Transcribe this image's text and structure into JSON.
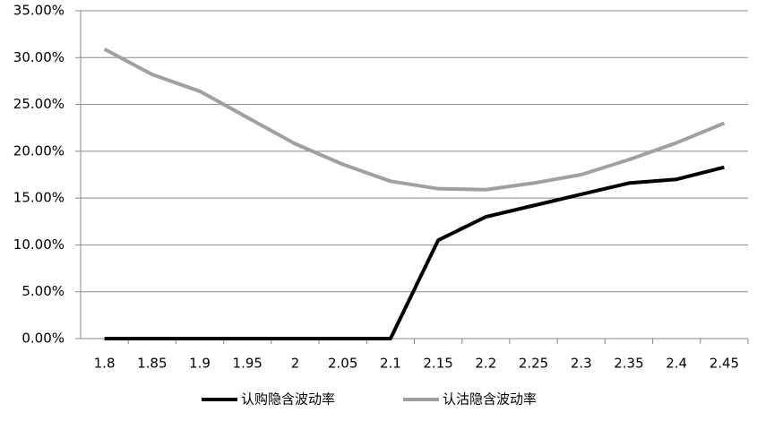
{
  "chart_data": {
    "type": "line",
    "categories": [
      "1.8",
      "1.85",
      "1.9",
      "1.95",
      "2",
      "2.05",
      "2.1",
      "2.15",
      "2.2",
      "2.25",
      "2.3",
      "2.35",
      "2.4",
      "2.45"
    ],
    "series": [
      {
        "name": "认购隐含波动率",
        "color": "#000000",
        "values": [
          0,
          0,
          0,
          0,
          0,
          0,
          0,
          10.5,
          13.0,
          14.2,
          15.4,
          16.6,
          17.0,
          18.3
        ]
      },
      {
        "name": "认沽隐含波动率",
        "color": "#a0a0a0",
        "values": [
          30.9,
          28.2,
          26.4,
          23.6,
          20.8,
          18.6,
          16.8,
          16.0,
          15.9,
          16.6,
          17.5,
          19.1,
          20.9,
          23.0
        ]
      }
    ],
    "ylim": [
      0,
      35
    ],
    "yticks": [
      {
        "value": 0,
        "label": "0.00%"
      },
      {
        "value": 5,
        "label": "5.00%"
      },
      {
        "value": 10,
        "label": "10.00%"
      },
      {
        "value": 15,
        "label": "15.00%"
      },
      {
        "value": 20,
        "label": "20.00%"
      },
      {
        "value": 25,
        "label": "25.00%"
      },
      {
        "value": 30,
        "label": "30.00%"
      },
      {
        "value": 35,
        "label": "35.00%"
      }
    ],
    "grid": true,
    "legend": "bottom"
  }
}
